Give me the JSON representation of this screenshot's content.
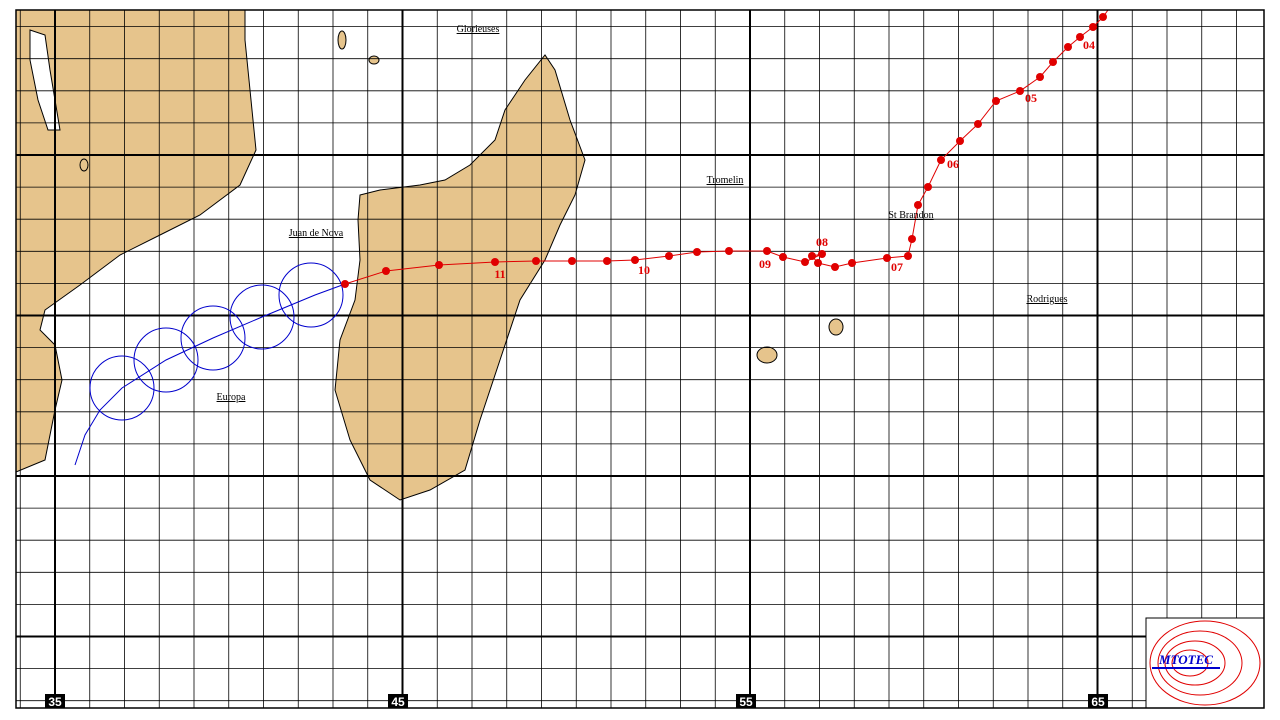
{
  "map": {
    "places": [
      "Glorieuses",
      "Tromelin",
      "St Brandon",
      "Juan de Nova",
      "Europa",
      "Rodrigues"
    ],
    "track_days": [
      "04",
      "05",
      "06",
      "07",
      "08",
      "09",
      "10",
      "11"
    ],
    "longitude_labels": [
      "35",
      "45",
      "55",
      "65"
    ],
    "logo": "MTOTEC"
  }
}
